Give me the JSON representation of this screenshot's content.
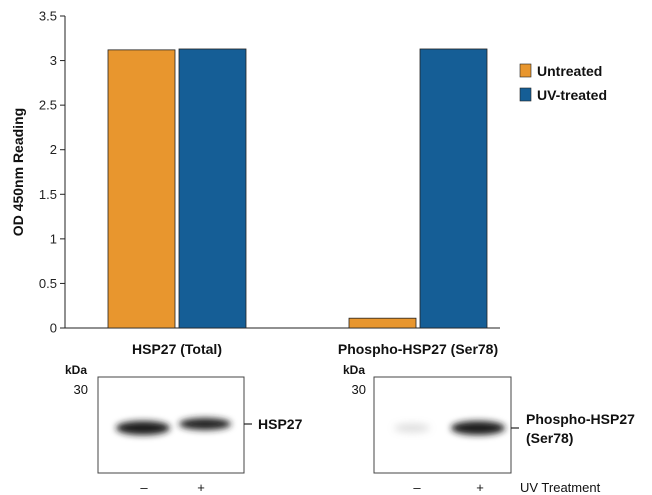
{
  "chart_data": {
    "type": "bar",
    "ylabel": "OD 450nm Reading",
    "ylim": [
      0,
      3.5
    ],
    "yticks": [
      "0",
      "0.5",
      "1",
      "1.5",
      "2",
      "2.5",
      "3",
      "3.5"
    ],
    "categories": [
      "HSP27 (Total)",
      "Phospho-HSP27 (Ser78)"
    ],
    "series": [
      {
        "name": "Untreated",
        "color": "#E8962E",
        "values": [
          3.12,
          0.11
        ]
      },
      {
        "name": "UV-treated",
        "color": "#155E96",
        "values": [
          3.13,
          3.13
        ]
      }
    ],
    "legend_position": "top-right",
    "grid": false
  },
  "blots": {
    "left": {
      "kda_label": "kDa",
      "marker": "30",
      "band_label": "HSP27",
      "lanes": [
        "–",
        "+"
      ]
    },
    "right": {
      "kda_label": "kDa",
      "marker": "30",
      "band_label_line1": "Phospho-HSP27",
      "band_label_line2": "(Ser78)",
      "lanes": [
        "–",
        "+"
      ],
      "treatment_label": "UV Treatment"
    }
  }
}
